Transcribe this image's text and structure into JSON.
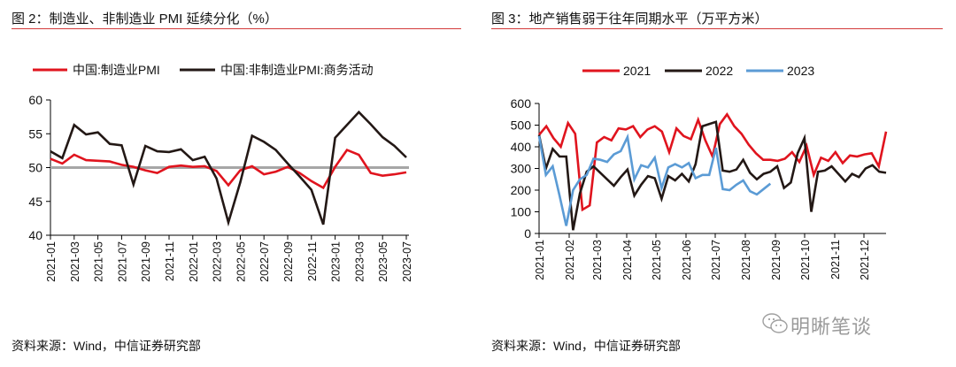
{
  "figures": [
    {
      "title": "图 2：制造业、非制造业 PMI 延续分化（%）",
      "source": "资料来源：Wind，中信证券研究部"
    },
    {
      "title": "图 3：地产销售弱于往年同期水平（万平方米）",
      "source": "资料来源：Wind，中信证券研究部"
    }
  ],
  "watermark": "明晰笔谈",
  "colors": {
    "red": "#e0141e",
    "black": "#231815",
    "blue": "#5b9bd5",
    "ref": "#a6a6a6",
    "rule": "#d33a3a"
  },
  "chart_data": [
    {
      "type": "line",
      "title": "制造业、非制造业 PMI 延续分化（%）",
      "xlabel": "",
      "ylabel": "",
      "ylim": [
        40,
        60
      ],
      "yticks": [
        40,
        45,
        50,
        55,
        60
      ],
      "xtick_labels": [
        "2021-01",
        "2021-03",
        "2021-05",
        "2021-07",
        "2021-09",
        "2021-11",
        "2022-01",
        "2022-03",
        "2022-05",
        "2022-07",
        "2022-09",
        "2022-11",
        "2023-01",
        "2023-03",
        "2023-05",
        "2023-07"
      ],
      "x": [
        "2021-01",
        "2021-02",
        "2021-03",
        "2021-04",
        "2021-05",
        "2021-06",
        "2021-07",
        "2021-08",
        "2021-09",
        "2021-10",
        "2021-11",
        "2021-12",
        "2022-01",
        "2022-02",
        "2022-03",
        "2022-04",
        "2022-05",
        "2022-06",
        "2022-07",
        "2022-08",
        "2022-09",
        "2022-10",
        "2022-11",
        "2022-12",
        "2023-01",
        "2023-02",
        "2023-03",
        "2023-04",
        "2023-05",
        "2023-06",
        "2023-07"
      ],
      "reference_line": 50,
      "legend": "top",
      "series": [
        {
          "name": "中国:制造业PMI",
          "color": "#e0141e",
          "values": [
            51.3,
            50.6,
            51.9,
            51.1,
            51.0,
            50.9,
            50.4,
            50.1,
            49.6,
            49.2,
            50.1,
            50.3,
            50.1,
            50.2,
            49.5,
            47.4,
            49.6,
            50.2,
            49.0,
            49.4,
            50.1,
            49.2,
            48.0,
            47.0,
            50.1,
            52.6,
            51.9,
            49.2,
            48.8,
            49.0,
            49.3
          ]
        },
        {
          "name": "中国:非制造业PMI:商务活动",
          "color": "#231815",
          "values": [
            52.4,
            51.4,
            56.3,
            54.9,
            55.2,
            53.5,
            53.3,
            47.5,
            53.2,
            52.4,
            52.3,
            52.7,
            51.1,
            51.6,
            48.4,
            41.9,
            47.8,
            54.7,
            53.8,
            52.6,
            50.6,
            48.7,
            46.7,
            41.6,
            54.4,
            56.3,
            58.2,
            56.4,
            54.5,
            53.2,
            51.5
          ]
        }
      ]
    },
    {
      "type": "line",
      "title": "地产销售弱于往年同期水平（万平方米）",
      "xlabel": "",
      "ylabel": "",
      "ylim": [
        0,
        600
      ],
      "yticks": [
        0,
        100,
        200,
        300,
        400,
        500,
        600
      ],
      "xtick_labels": [
        "2021-01",
        "2021-02",
        "2021-03",
        "2021-04",
        "2021-05",
        "2021-06",
        "2021-07",
        "2021-08",
        "2021-09",
        "2021-10",
        "2021-11",
        "2021-12"
      ],
      "x_unit": "week-of-year",
      "legend": "top",
      "series": [
        {
          "name": "2021",
          "color": "#e0141e",
          "values": [
            455,
            495,
            440,
            400,
            510,
            460,
            110,
            130,
            420,
            445,
            430,
            485,
            480,
            495,
            445,
            480,
            495,
            470,
            375,
            485,
            450,
            435,
            525,
            430,
            355,
            505,
            550,
            495,
            460,
            410,
            370,
            340,
            340,
            335,
            345,
            375,
            330,
            405,
            270,
            350,
            335,
            375,
            325,
            360,
            355,
            365,
            370,
            310,
            470
          ]
        },
        {
          "name": "2022",
          "color": "#231815",
          "values": [
            455,
            300,
            390,
            355,
            355,
            15,
            185,
            285,
            310,
            280,
            250,
            220,
            260,
            295,
            175,
            225,
            265,
            255,
            160,
            265,
            245,
            275,
            240,
            320,
            495,
            505,
            515,
            290,
            285,
            295,
            340,
            280,
            250,
            275,
            285,
            310,
            210,
            235,
            370,
            440,
            100,
            285,
            290,
            310,
            275,
            240,
            275,
            260,
            300,
            315,
            285,
            280
          ]
        },
        {
          "name": "2023",
          "color": "#5b9bd5",
          "values": [
            450,
            270,
            310,
            175,
            35,
            200,
            250,
            270,
            345,
            340,
            330,
            365,
            380,
            445,
            250,
            315,
            305,
            350,
            210,
            305,
            320,
            305,
            325,
            255,
            270,
            270,
            395,
            205,
            200,
            225,
            245,
            195,
            180,
            205,
            230
          ]
        }
      ]
    }
  ]
}
